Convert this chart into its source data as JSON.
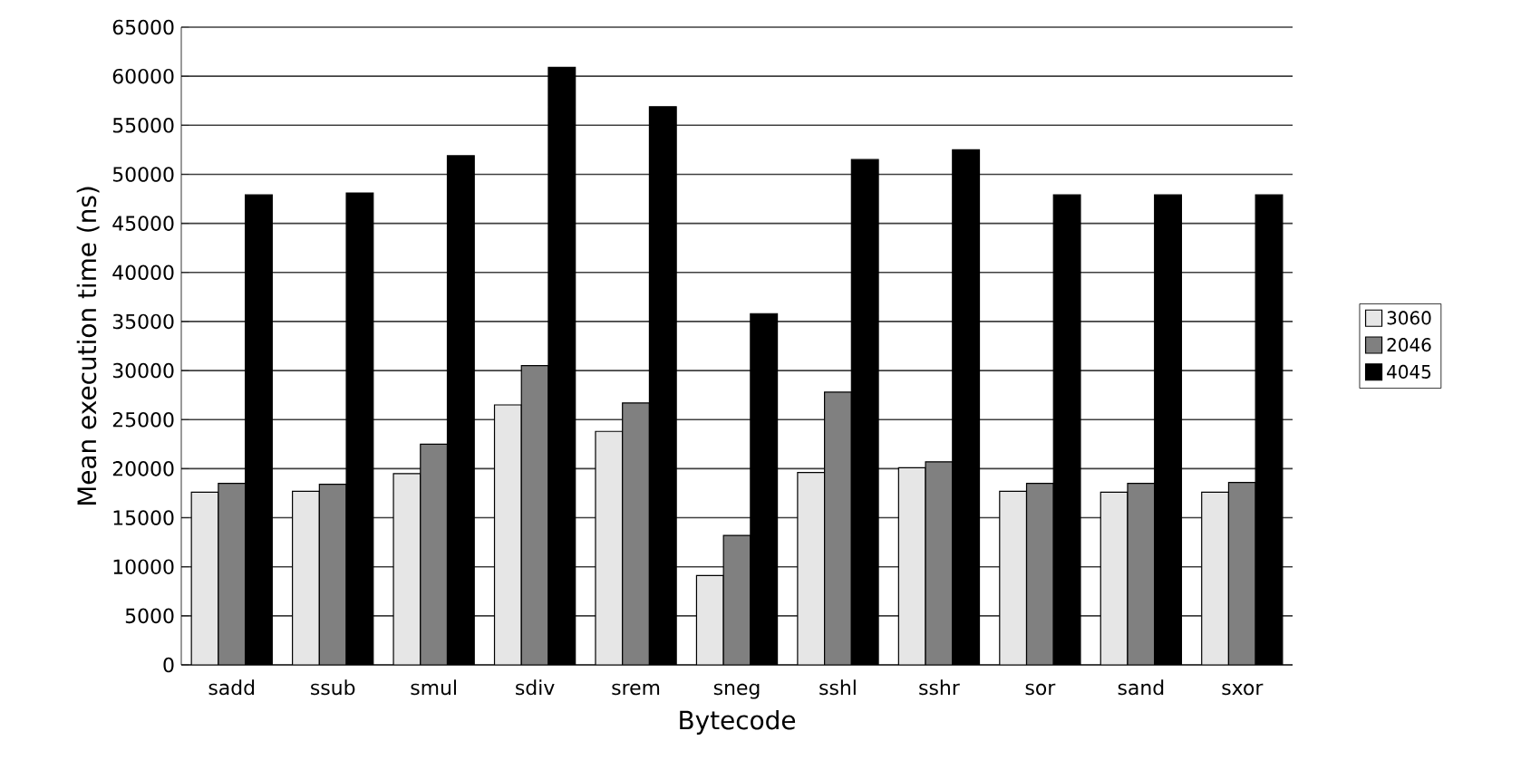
{
  "chart_data": {
    "type": "bar",
    "xlabel": "Bytecode",
    "ylabel": "Mean execution time (ns)",
    "categories": [
      "sadd",
      "ssub",
      "smul",
      "sdiv",
      "srem",
      "sneg",
      "sshl",
      "sshr",
      "sor",
      "sand",
      "sxor"
    ],
    "series": [
      {
        "name": "3060",
        "color": "#e6e6e6",
        "values": [
          17600,
          17700,
          19500,
          26500,
          23800,
          9100,
          19600,
          20100,
          17700,
          17600,
          17600
        ]
      },
      {
        "name": "2046",
        "color": "#808080",
        "values": [
          18500,
          18400,
          22500,
          30500,
          26700,
          13200,
          27800,
          20700,
          18500,
          18500,
          18600
        ]
      },
      {
        "name": "4045",
        "color": "#000000",
        "values": [
          47900,
          48100,
          51900,
          60900,
          56900,
          35800,
          51500,
          52500,
          47900,
          47900,
          47900
        ]
      }
    ],
    "ylim": [
      0,
      65000
    ],
    "yticks": [
      0,
      5000,
      10000,
      15000,
      20000,
      25000,
      30000,
      35000,
      40000,
      45000,
      50000,
      55000,
      60000,
      65000
    ],
    "grid": "y",
    "legend": "right"
  }
}
